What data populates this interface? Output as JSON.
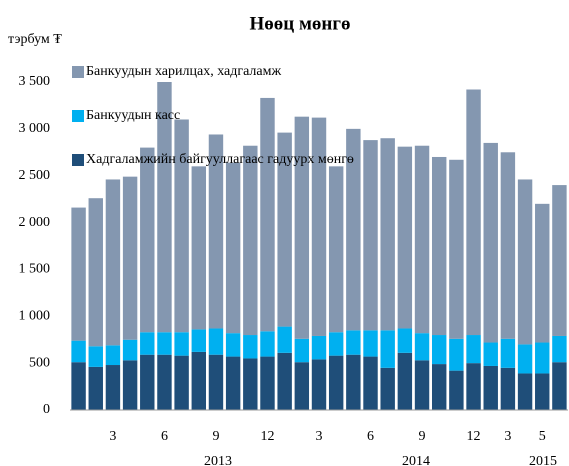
{
  "chart_data": {
    "type": "stacked_bar",
    "title": "Нөөц мөнгө",
    "y_label": "тэрбум ₮",
    "categories": [
      null,
      null,
      "3",
      null,
      null,
      "6",
      null,
      null,
      "9",
      null,
      null,
      "12",
      null,
      null,
      "3",
      null,
      null,
      "6",
      null,
      null,
      "9",
      null,
      null,
      "12",
      null,
      "3",
      null,
      "5",
      null
    ],
    "year_labels": [
      "2013",
      "2014",
      "2015"
    ],
    "series": [
      {
        "name": "Хадгаламжийн байгууллагаас гадуурх мөнгө",
        "color": "#1f4e79",
        "values": [
          510,
          460,
          480,
          530,
          590,
          590,
          580,
          620,
          590,
          570,
          550,
          570,
          610,
          510,
          540,
          580,
          590,
          570,
          450,
          610,
          530,
          490,
          420,
          500,
          470,
          450,
          390,
          390,
          510
        ]
      },
      {
        "name": "Банкуудын касс",
        "color": "#00b0f0",
        "values": [
          230,
          220,
          210,
          220,
          240,
          240,
          250,
          240,
          280,
          250,
          250,
          270,
          280,
          250,
          250,
          250,
          260,
          280,
          400,
          260,
          290,
          310,
          340,
          300,
          250,
          310,
          310,
          330,
          280
        ]
      },
      {
        "name": "Банкуудын харилцах,  хадгаламж",
        "color": "#8497b0",
        "values": [
          1420,
          1580,
          1770,
          1740,
          1970,
          2670,
          2270,
          1740,
          2070,
          1820,
          2020,
          2490,
          2070,
          2370,
          2330,
          1770,
          2150,
          2030,
          2050,
          1940,
          2000,
          1900,
          1910,
          2620,
          2130,
          1990,
          1760,
          1480,
          1610
        ]
      }
    ],
    "ylim": [
      0,
      3500
    ],
    "yticks": [
      0,
      500,
      {
        "value": 1000,
        "label": "1 000"
      },
      {
        "value": 1500,
        "label": "1 500"
      },
      {
        "value": 2000,
        "label": "2 000"
      },
      {
        "value": 2500,
        "label": "2 500"
      },
      {
        "value": 3000,
        "label": "3 000"
      },
      {
        "value": 3500,
        "label": "3 500"
      }
    ],
    "legend": "top-left"
  }
}
